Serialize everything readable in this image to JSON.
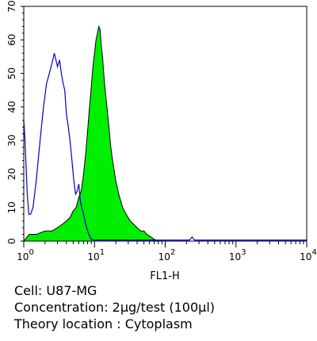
{
  "chart_data": {
    "type": "area",
    "title": "",
    "xlabel": "FL1-H",
    "ylabel": "",
    "xscale": "log",
    "xlim": [
      1,
      10000
    ],
    "ylim": [
      0,
      70
    ],
    "x_ticks": [
      {
        "value": 1,
        "base": "10",
        "exp": "0"
      },
      {
        "value": 10,
        "base": "10",
        "exp": "1"
      },
      {
        "value": 100,
        "base": "10",
        "exp": "2"
      },
      {
        "value": 1000,
        "base": "10",
        "exp": "3"
      },
      {
        "value": 10000,
        "base": "10",
        "exp": "4"
      }
    ],
    "y_ticks": [
      0,
      10,
      20,
      30,
      40,
      50,
      60,
      70
    ],
    "grid": false,
    "legend": "none",
    "series": [
      {
        "style": "outline",
        "color": "#0000cc",
        "points": [
          [
            1.0,
            36
          ],
          [
            1.04,
            30
          ],
          [
            1.08,
            22
          ],
          [
            1.12,
            14
          ],
          [
            1.18,
            8
          ],
          [
            1.25,
            8
          ],
          [
            1.35,
            10
          ],
          [
            1.5,
            18
          ],
          [
            1.7,
            30
          ],
          [
            1.9,
            40
          ],
          [
            2.1,
            47
          ],
          [
            2.3,
            50
          ],
          [
            2.5,
            53
          ],
          [
            2.7,
            56
          ],
          [
            2.85,
            54
          ],
          [
            3.0,
            52
          ],
          [
            3.2,
            54
          ],
          [
            3.4,
            50
          ],
          [
            3.6,
            47
          ],
          [
            3.8,
            45
          ],
          [
            4.0,
            38
          ],
          [
            4.2,
            35
          ],
          [
            4.5,
            30
          ],
          [
            4.8,
            24
          ],
          [
            5.1,
            18
          ],
          [
            5.4,
            14
          ],
          [
            5.7,
            15
          ],
          [
            6.0,
            17
          ],
          [
            6.3,
            12
          ],
          [
            6.6,
            10
          ],
          [
            7.0,
            8
          ],
          [
            7.5,
            5
          ],
          [
            8.0,
            3
          ],
          [
            8.5,
            1.5
          ],
          [
            9.0,
            0.5
          ],
          [
            10,
            0.3
          ],
          [
            20,
            0.3
          ],
          [
            100,
            0.3
          ],
          [
            220,
            0.3
          ],
          [
            240,
            1.2
          ],
          [
            260,
            0.3
          ],
          [
            400,
            0.3
          ],
          [
            10000,
            0.3
          ]
        ]
      },
      {
        "style": "filled",
        "color": "#00ee00",
        "points": [
          [
            1.0,
            0
          ],
          [
            1.2,
            2
          ],
          [
            1.5,
            2
          ],
          [
            2.0,
            3
          ],
          [
            2.5,
            3
          ],
          [
            3.0,
            4
          ],
          [
            3.5,
            5
          ],
          [
            4.0,
            6
          ],
          [
            4.5,
            7
          ],
          [
            5.0,
            9
          ],
          [
            5.5,
            10
          ],
          [
            6.0,
            13
          ],
          [
            6.5,
            15
          ],
          [
            7.0,
            20
          ],
          [
            7.5,
            26
          ],
          [
            8.0,
            33
          ],
          [
            8.5,
            40
          ],
          [
            9.0,
            46
          ],
          [
            9.5,
            52
          ],
          [
            10.0,
            56
          ],
          [
            10.5,
            60
          ],
          [
            11.0,
            62
          ],
          [
            11.5,
            64
          ],
          [
            12.0,
            63
          ],
          [
            12.5,
            58
          ],
          [
            13.0,
            55
          ],
          [
            13.5,
            50
          ],
          [
            14.0,
            46
          ],
          [
            15.0,
            40
          ],
          [
            16.0,
            34
          ],
          [
            17.0,
            28
          ],
          [
            18.0,
            24
          ],
          [
            20.0,
            18
          ],
          [
            22.0,
            14
          ],
          [
            25.0,
            10
          ],
          [
            28.0,
            8
          ],
          [
            32.0,
            6
          ],
          [
            36.0,
            5
          ],
          [
            40.0,
            4
          ],
          [
            45.0,
            3
          ],
          [
            50.0,
            3
          ],
          [
            55.0,
            2
          ],
          [
            60.0,
            1.5
          ],
          [
            65.0,
            1
          ],
          [
            70.0,
            0.5
          ],
          [
            80.0,
            0
          ]
        ]
      }
    ]
  },
  "caption": {
    "cell": "Cell: U87-MG",
    "concentration": "Concentration: 2µg/test (100µl)",
    "theory": "Theory location : Cytoplasm"
  }
}
